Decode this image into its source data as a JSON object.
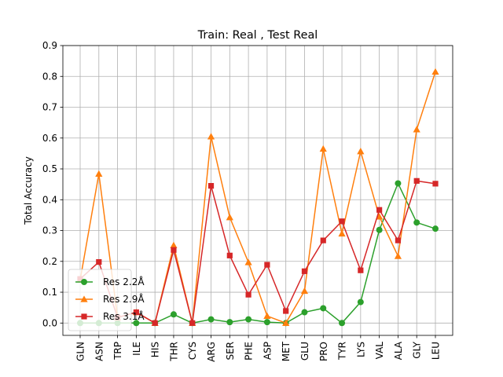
{
  "chart_data": {
    "type": "line",
    "title": "Train: Real , Test Real",
    "xlabel": "",
    "ylabel": "Total Accuracy",
    "ylim": [
      -0.04,
      0.9
    ],
    "yticks": [
      "0.0",
      "0.1",
      "0.2",
      "0.3",
      "0.4",
      "0.5",
      "0.6",
      "0.7",
      "0.8",
      "0.9"
    ],
    "grid": true,
    "legend_position": "lower-left",
    "categories": [
      "GLN",
      "ASN",
      "TRP",
      "ILE",
      "HIS",
      "THR",
      "CYS",
      "ARG",
      "SER",
      "PHE",
      "ASP",
      "MET",
      "GLU",
      "PRO",
      "TYR",
      "LYS",
      "VAL",
      "ALA",
      "GLY",
      "LEU"
    ],
    "series": [
      {
        "name": "Res 2.2Å",
        "color": "#2ca02c",
        "marker": "circle",
        "values": [
          0.0,
          0.0,
          0.0,
          0.0,
          0.0,
          0.028,
          0.0,
          0.012,
          0.003,
          0.012,
          0.003,
          0.0,
          0.035,
          0.048,
          0.0,
          0.068,
          0.302,
          0.453,
          0.326,
          0.306
        ]
      },
      {
        "name": "Res 2.9Å",
        "color": "#ff7f0e",
        "marker": "triangle",
        "values": [
          0.14,
          0.484,
          0.018,
          0.035,
          0.0,
          0.252,
          0.0,
          0.605,
          0.343,
          0.197,
          0.023,
          0.0,
          0.104,
          0.565,
          0.29,
          0.557,
          0.345,
          0.217,
          0.628,
          0.815
        ]
      },
      {
        "name": "Res 3.1Å",
        "color": "#d62728",
        "marker": "square",
        "values": [
          0.143,
          0.198,
          0.018,
          0.035,
          0.0,
          0.237,
          0.0,
          0.445,
          0.219,
          0.092,
          0.189,
          0.039,
          0.168,
          0.268,
          0.33,
          0.171,
          0.367,
          0.268,
          0.461,
          0.452
        ]
      }
    ]
  }
}
